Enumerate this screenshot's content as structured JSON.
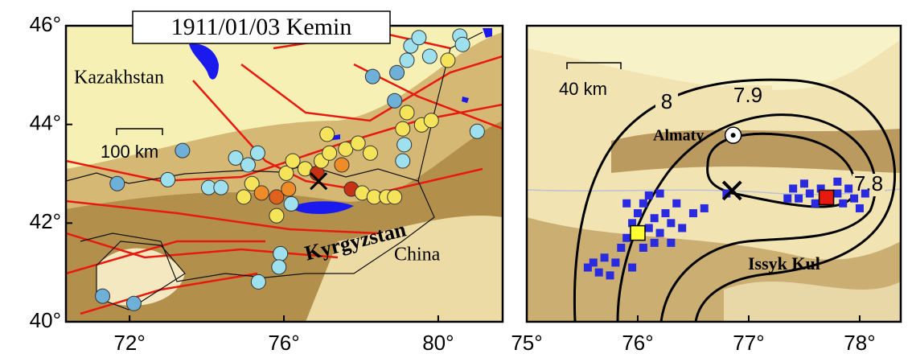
{
  "title": "1911/01/03 Kemin",
  "left_map": {
    "xlim": [
      70.35,
      81.67
    ],
    "ylim": [
      40,
      46
    ],
    "xticks": [
      {
        "value": 72,
        "label": "72°"
      },
      {
        "value": 76,
        "label": "76°"
      },
      {
        "value": 80,
        "label": "80°"
      }
    ],
    "yticks": [
      {
        "value": 40,
        "label": "40°"
      },
      {
        "value": 42,
        "label": "42°"
      },
      {
        "value": 44,
        "label": "44°"
      },
      {
        "value": 46,
        "label": "46°"
      }
    ],
    "labels": {
      "kazakhstan": "Kazakhstan",
      "kyrgyzstan": "Kyrgyzstan",
      "china": "China"
    },
    "scale_bar": "100 km",
    "epicenter": {
      "lon": 76.9,
      "lat": 42.85
    },
    "points": [
      {
        "lon": 71.68,
        "lat": 42.8,
        "color": "#6fb0d8"
      },
      {
        "lon": 72.99,
        "lat": 42.88,
        "color": "#9fe0ef"
      },
      {
        "lon": 73.37,
        "lat": 43.47,
        "color": "#6fb0d8"
      },
      {
        "lon": 74.05,
        "lat": 42.72,
        "color": "#9fe0ef"
      },
      {
        "lon": 74.37,
        "lat": 42.72,
        "color": "#9fe0ef"
      },
      {
        "lon": 74.75,
        "lat": 43.32,
        "color": "#9fe0ef"
      },
      {
        "lon": 75.07,
        "lat": 43.18,
        "color": "#9fe0ef"
      },
      {
        "lon": 75.32,
        "lat": 43.42,
        "color": "#9fe0ef"
      },
      {
        "lon": 74.96,
        "lat": 42.53,
        "color": "#f5e35a"
      },
      {
        "lon": 75.17,
        "lat": 42.8,
        "color": "#f5e35a"
      },
      {
        "lon": 75.42,
        "lat": 42.61,
        "color": "#f08c28"
      },
      {
        "lon": 75.81,
        "lat": 42.53,
        "color": "#e0601e"
      },
      {
        "lon": 76.12,
        "lat": 42.69,
        "color": "#f08c28"
      },
      {
        "lon": 76.06,
        "lat": 43.01,
        "color": "#f5e35a"
      },
      {
        "lon": 76.23,
        "lat": 43.26,
        "color": "#f5e35a"
      },
      {
        "lon": 76.55,
        "lat": 43.1,
        "color": "#f5e35a"
      },
      {
        "lon": 76.86,
        "lat": 43.01,
        "color": "#c83214"
      },
      {
        "lon": 76.97,
        "lat": 43.26,
        "color": "#f5e35a"
      },
      {
        "lon": 77.18,
        "lat": 43.42,
        "color": "#f5e35a"
      },
      {
        "lon": 77.5,
        "lat": 43.18,
        "color": "#f08c28"
      },
      {
        "lon": 77.75,
        "lat": 42.69,
        "color": "#c83214"
      },
      {
        "lon": 78.03,
        "lat": 42.61,
        "color": "#f5e35a"
      },
      {
        "lon": 77.6,
        "lat": 43.5,
        "color": "#f5e35a"
      },
      {
        "lon": 77.92,
        "lat": 43.62,
        "color": "#f5e35a"
      },
      {
        "lon": 78.24,
        "lat": 43.42,
        "color": "#f5e35a"
      },
      {
        "lon": 78.34,
        "lat": 42.53,
        "color": "#f5e35a"
      },
      {
        "lon": 78.66,
        "lat": 42.53,
        "color": "#f5e35a"
      },
      {
        "lon": 78.87,
        "lat": 42.53,
        "color": "#f5e35a"
      },
      {
        "lon": 77.12,
        "lat": 43.8,
        "color": "#f5e35a"
      },
      {
        "lon": 76.19,
        "lat": 42.39,
        "color": "#9fe0ef"
      },
      {
        "lon": 75.81,
        "lat": 42.15,
        "color": "#f5e35a"
      },
      {
        "lon": 75.91,
        "lat": 41.38,
        "color": "#9fe0ef"
      },
      {
        "lon": 75.87,
        "lat": 41.11,
        "color": "#9fe0ef"
      },
      {
        "lon": 75.34,
        "lat": 40.81,
        "color": "#9fe0ef"
      },
      {
        "lon": 79.12,
        "lat": 43.59,
        "color": "#9fe0ef"
      },
      {
        "lon": 79.08,
        "lat": 43.91,
        "color": "#f5e35a"
      },
      {
        "lon": 79.19,
        "lat": 44.24,
        "color": "#f5e35a"
      },
      {
        "lon": 79.57,
        "lat": 43.99,
        "color": "#f5e35a"
      },
      {
        "lon": 79.82,
        "lat": 44.08,
        "color": "#f5e35a"
      },
      {
        "lon": 78.87,
        "lat": 44.48,
        "color": "#6fb0d8"
      },
      {
        "lon": 78.3,
        "lat": 44.97,
        "color": "#6fb0d8"
      },
      {
        "lon": 78.93,
        "lat": 45.05,
        "color": "#6fb0d8"
      },
      {
        "lon": 79.19,
        "lat": 45.3,
        "color": "#9fe0ef"
      },
      {
        "lon": 79.29,
        "lat": 45.59,
        "color": "#9fe0ef"
      },
      {
        "lon": 79.5,
        "lat": 45.76,
        "color": "#9fe0ef"
      },
      {
        "lon": 79.78,
        "lat": 45.38,
        "color": "#9fe0ef"
      },
      {
        "lon": 80.25,
        "lat": 45.3,
        "color": "#f5e35a"
      },
      {
        "lon": 80.56,
        "lat": 45.79,
        "color": "#9fe0ef"
      },
      {
        "lon": 80.63,
        "lat": 45.62,
        "color": "#9fe0ef"
      },
      {
        "lon": 81.01,
        "lat": 43.86,
        "color": "#9fe0ef"
      },
      {
        "lon": 71.3,
        "lat": 40.52,
        "color": "#6fb0d8"
      },
      {
        "lon": 72.11,
        "lat": 40.37,
        "color": "#6fb0d8"
      },
      {
        "lon": 79.08,
        "lat": 43.26,
        "color": "#9fe0ef"
      }
    ]
  },
  "right_map": {
    "xlim": [
      75,
      78.37
    ],
    "ylim": [
      41,
      44
    ],
    "xticks": [
      {
        "value": 75,
        "label": "75°"
      },
      {
        "value": 76,
        "label": "76°"
      },
      {
        "value": 77,
        "label": "77°"
      },
      {
        "value": 78,
        "label": "78°"
      }
    ],
    "scale_bar": "40 km",
    "labels": {
      "almaty": "Almaty",
      "issyk_kul": "Issyk Kul"
    },
    "contour_labels": [
      "8",
      "7.9",
      "7.8"
    ],
    "epicenter": {
      "lon": 76.85,
      "lat": 42.33
    },
    "almaty": {
      "lon": 76.86,
      "lat": 42.89
    },
    "yellow_marker": {
      "lon": 76.0,
      "lat": 41.9
    },
    "red_marker": {
      "lon": 77.7,
      "lat": 42.26
    },
    "square_color": "#2a2ae0",
    "squares": [
      {
        "lon": 75.6,
        "lat": 41.6
      },
      {
        "lon": 75.65,
        "lat": 41.5
      },
      {
        "lon": 75.7,
        "lat": 41.65
      },
      {
        "lon": 75.55,
        "lat": 41.55
      },
      {
        "lon": 75.75,
        "lat": 41.47
      },
      {
        "lon": 75.8,
        "lat": 41.6
      },
      {
        "lon": 75.85,
        "lat": 41.75
      },
      {
        "lon": 75.9,
        "lat": 41.85
      },
      {
        "lon": 75.95,
        "lat": 42.0
      },
      {
        "lon": 76.0,
        "lat": 42.1
      },
      {
        "lon": 76.05,
        "lat": 42.2
      },
      {
        "lon": 76.1,
        "lat": 41.95
      },
      {
        "lon": 76.15,
        "lat": 42.05
      },
      {
        "lon": 76.2,
        "lat": 41.9
      },
      {
        "lon": 76.25,
        "lat": 42.1
      },
      {
        "lon": 76.3,
        "lat": 42.0
      },
      {
        "lon": 76.35,
        "lat": 42.2
      },
      {
        "lon": 76.4,
        "lat": 41.95
      },
      {
        "lon": 76.05,
        "lat": 41.75
      },
      {
        "lon": 76.15,
        "lat": 41.8
      },
      {
        "lon": 75.9,
        "lat": 42.2
      },
      {
        "lon": 76.1,
        "lat": 42.28
      },
      {
        "lon": 76.3,
        "lat": 41.8
      },
      {
        "lon": 76.5,
        "lat": 42.1
      },
      {
        "lon": 76.6,
        "lat": 42.15
      },
      {
        "lon": 76.8,
        "lat": 42.3
      },
      {
        "lon": 76.2,
        "lat": 42.3
      },
      {
        "lon": 75.95,
        "lat": 41.55
      },
      {
        "lon": 77.4,
        "lat": 42.35
      },
      {
        "lon": 77.45,
        "lat": 42.25
      },
      {
        "lon": 77.5,
        "lat": 42.4
      },
      {
        "lon": 77.55,
        "lat": 42.3
      },
      {
        "lon": 77.6,
        "lat": 42.2
      },
      {
        "lon": 77.65,
        "lat": 42.35
      },
      {
        "lon": 77.8,
        "lat": 42.3
      },
      {
        "lon": 77.85,
        "lat": 42.2
      },
      {
        "lon": 77.9,
        "lat": 42.35
      },
      {
        "lon": 77.95,
        "lat": 42.25
      },
      {
        "lon": 78.0,
        "lat": 42.15
      },
      {
        "lon": 78.05,
        "lat": 42.3
      },
      {
        "lon": 77.35,
        "lat": 42.25
      },
      {
        "lon": 77.8,
        "lat": 42.42
      }
    ]
  }
}
